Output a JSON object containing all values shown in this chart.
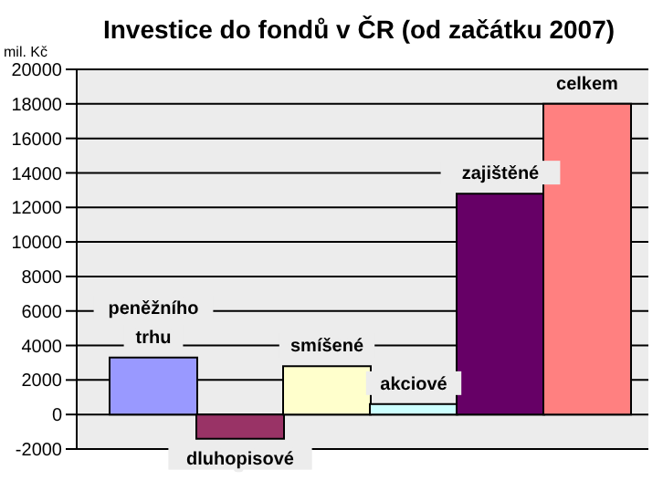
{
  "chart_data": {
    "type": "bar",
    "title": "Investice do fondů v ČR (od začátku 2007)",
    "ylabel": "mil. Kč",
    "categories": [
      "peněžního trhu",
      "dluhopisové",
      "smíšené",
      "akciové",
      "zajištěné",
      "celkem"
    ],
    "values": [
      3300,
      -1400,
      2800,
      600,
      12800,
      18000
    ],
    "colors": [
      "#9999ff",
      "#993366",
      "#ffffcc",
      "#ccffff",
      "#660066",
      "#ff8080"
    ],
    "ylim": [
      -2000,
      20000
    ],
    "yticks": [
      -2000,
      0,
      2000,
      4000,
      6000,
      8000,
      10000,
      12000,
      14000,
      16000,
      18000,
      20000
    ],
    "grid": "y"
  }
}
